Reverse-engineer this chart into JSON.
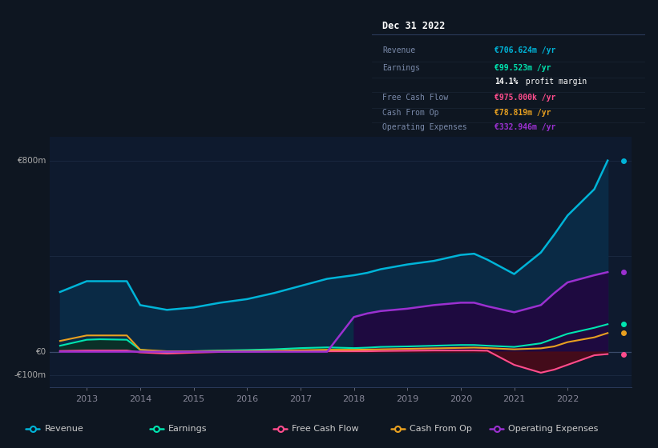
{
  "background_color": "#0e1621",
  "plot_bg_color": "#0e1a2e",
  "years": [
    2012.5,
    2013,
    2013.25,
    2013.75,
    2014,
    2014.5,
    2015,
    2015.5,
    2016,
    2016.5,
    2017,
    2017.5,
    2018,
    2018.25,
    2018.5,
    2019,
    2019.5,
    2020,
    2020.25,
    2020.5,
    2021,
    2021.5,
    2021.75,
    2022,
    2022.5,
    2022.75
  ],
  "revenue": [
    250,
    295,
    295,
    295,
    195,
    175,
    185,
    205,
    220,
    245,
    275,
    305,
    320,
    330,
    345,
    365,
    380,
    405,
    410,
    385,
    325,
    415,
    490,
    570,
    680,
    800
  ],
  "earnings": [
    25,
    50,
    52,
    50,
    8,
    -2,
    2,
    5,
    7,
    10,
    15,
    18,
    15,
    17,
    20,
    22,
    25,
    28,
    28,
    25,
    20,
    35,
    55,
    75,
    100,
    115
  ],
  "free_cash_flow": [
    3,
    5,
    5,
    5,
    -3,
    -8,
    -4,
    -1,
    0,
    1,
    2,
    2,
    2,
    2,
    3,
    4,
    5,
    5,
    5,
    4,
    -55,
    -88,
    -75,
    -55,
    -15,
    -10
  ],
  "cash_from_op": [
    45,
    68,
    68,
    68,
    8,
    2,
    2,
    3,
    3,
    4,
    6,
    8,
    8,
    9,
    10,
    12,
    14,
    16,
    17,
    15,
    10,
    14,
    22,
    40,
    60,
    78
  ],
  "operating_expenses": [
    0,
    0,
    0,
    0,
    0,
    0,
    0,
    0,
    0,
    0,
    0,
    0,
    145,
    160,
    170,
    180,
    195,
    205,
    205,
    190,
    165,
    195,
    245,
    290,
    320,
    333
  ],
  "ylim": [
    -150,
    900
  ],
  "revenue_color": "#00b4d8",
  "earnings_color": "#00e5b0",
  "free_cash_flow_color": "#ff4d8d",
  "cash_from_op_color": "#e8a020",
  "operating_expenses_color": "#9b30d0",
  "revenue_fill_color": "#0a2a45",
  "earnings_fill_color": "#0a3028",
  "operating_expenses_fill_color": "#1e0a40",
  "fcf_neg_fill_color": "#4a0a18",
  "grid_color": "#1a2840",
  "zero_line_color": "#3a4a6a",
  "info_box": {
    "date": "Dec 31 2022",
    "rows": [
      {
        "label": "Revenue",
        "value": "€706.624m /yr",
        "value_color": "#00b4d8"
      },
      {
        "label": "Earnings",
        "value": "€99.523m /yr",
        "value_color": "#00e5b0"
      },
      {
        "label": "",
        "value": "14.1% profit margin",
        "value_color": "#ffffff",
        "bold_prefix": "14.1%"
      },
      {
        "label": "Free Cash Flow",
        "value": "€975.000k /yr",
        "value_color": "#ff4d8d"
      },
      {
        "label": "Cash From Op",
        "value": "€78.819m /yr",
        "value_color": "#e8a020"
      },
      {
        "label": "Operating Expenses",
        "value": "€332.946m /yr",
        "value_color": "#9b30d0"
      }
    ]
  },
  "legend_items": [
    "Revenue",
    "Earnings",
    "Free Cash Flow",
    "Cash From Op",
    "Operating Expenses"
  ],
  "legend_colors": [
    "#00b4d8",
    "#00e5b0",
    "#ff4d8d",
    "#e8a020",
    "#9b30d0"
  ],
  "xmin": 2012.3,
  "xmax": 2023.2,
  "xticks": [
    2013,
    2014,
    2015,
    2016,
    2017,
    2018,
    2019,
    2020,
    2021,
    2022
  ]
}
